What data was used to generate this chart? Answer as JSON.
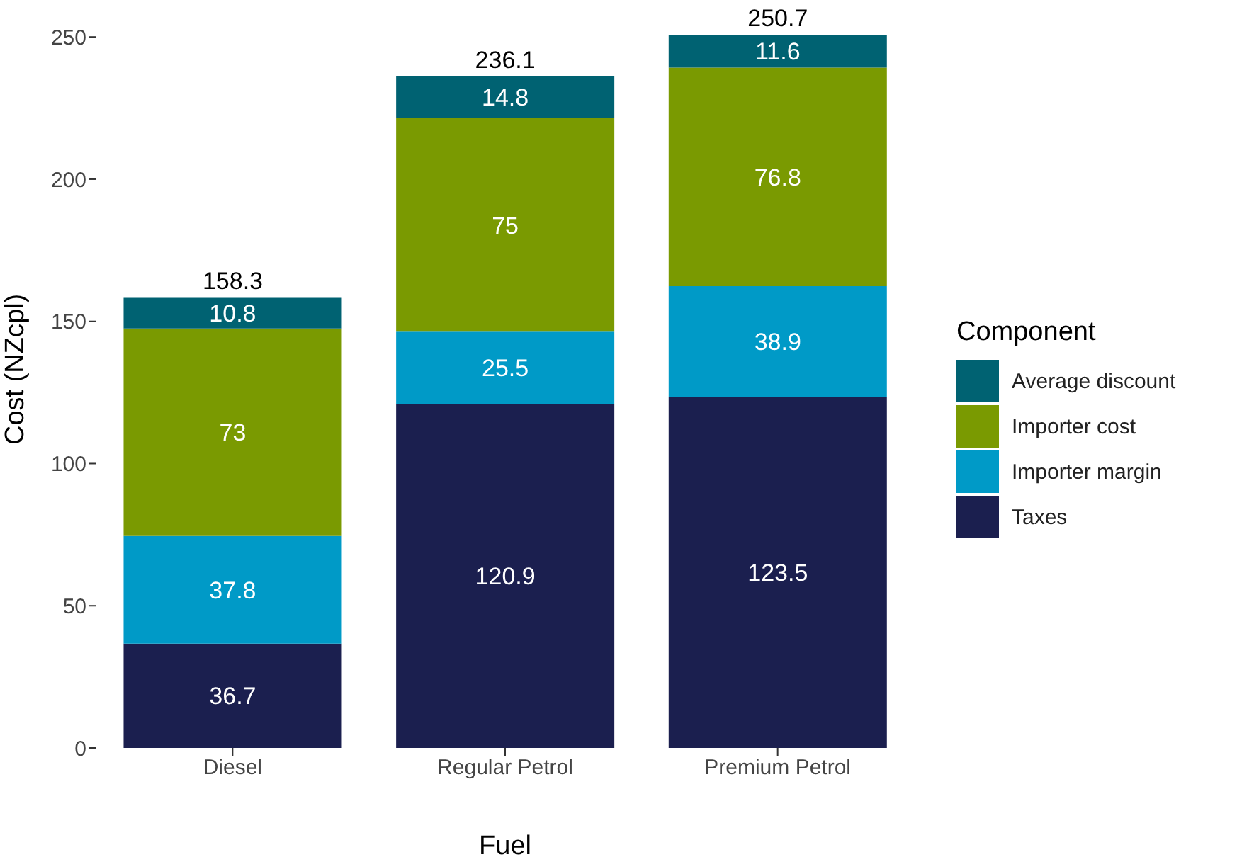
{
  "chart_data": {
    "type": "bar",
    "stacked": true,
    "xlabel": "Fuel",
    "ylabel": "Cost (NZcpl)",
    "legend_title": "Component",
    "categories": [
      "Diesel",
      "Regular Petrol",
      "Premium Petrol"
    ],
    "series": [
      {
        "name": "Taxes",
        "color": "#1b1f4f",
        "values": [
          36.7,
          120.9,
          123.5
        ]
      },
      {
        "name": "Importer margin",
        "color": "#009ac7",
        "values": [
          37.8,
          25.5,
          38.9
        ]
      },
      {
        "name": "Importer cost",
        "color": "#7a9a01",
        "values": [
          73,
          75,
          76.8
        ]
      },
      {
        "name": "Average discount",
        "color": "#006272",
        "values": [
          10.8,
          14.8,
          11.6
        ]
      }
    ],
    "totals": [
      "158.3",
      "236.1",
      "250.7"
    ],
    "data_labels": true,
    "ylim": [
      0,
      263
    ],
    "yticks": [
      0,
      50,
      100,
      150,
      200,
      250
    ],
    "grid": false,
    "legend": "right"
  }
}
